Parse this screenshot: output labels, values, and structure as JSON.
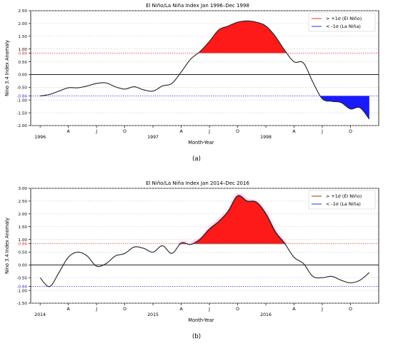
{
  "colors": {
    "el_nino": "#ff1a1a",
    "la_nina": "#1a1aff",
    "line": "#222222",
    "pos_threshold": "#e03030",
    "neg_threshold": "#3030e0",
    "zero_line": "#000000",
    "confidence_shade": "#ff9ef2",
    "dark_fill": "#a0301a"
  },
  "chart_data": [
    {
      "type": "line",
      "panel_label": "(a)",
      "title": "El Niño/La Niña Index Jan 1996–Dec 1998",
      "xlabel": "Month-Year",
      "ylabel": "Nino 3.4 Index Anomaly",
      "ylim": [
        -2.0,
        2.5
      ],
      "yticks": [
        "2.50",
        "2.00",
        "1.50",
        "1.00",
        "0.84",
        "0.50",
        "0.00",
        "-0.50",
        "-0.84",
        "-1.00",
        "-1.50",
        "-2.00"
      ],
      "x_tick_labels": [
        {
          "month": 1,
          "label": "1996"
        },
        {
          "month": 4,
          "label": "A"
        },
        {
          "month": 7,
          "label": "J"
        },
        {
          "month": 10,
          "label": "O"
        },
        {
          "month": 13,
          "label": "1997"
        },
        {
          "month": 16,
          "label": "A"
        },
        {
          "month": 19,
          "label": "J"
        },
        {
          "month": 22,
          "label": "O"
        },
        {
          "month": 25,
          "label": "1998"
        },
        {
          "month": 28,
          "label": "A"
        },
        {
          "month": 31,
          "label": "J"
        },
        {
          "month": 34,
          "label": "O"
        }
      ],
      "thresholds": {
        "upper": 0.84,
        "lower": -0.84
      },
      "legend": {
        "position": "top-right",
        "entries": [
          "> +1σ (El Niño)",
          "< -1σ (La Niña)"
        ]
      },
      "series": [
        {
          "month": [
            1,
            2,
            3,
            4,
            5,
            6,
            7,
            8,
            9,
            10,
            11,
            12,
            13,
            14,
            15,
            16,
            17,
            18,
            19,
            20,
            21,
            22,
            23,
            24,
            25,
            26,
            27,
            28,
            29,
            30,
            31,
            32,
            33,
            34,
            35,
            36
          ],
          "values": [
            -0.84,
            -0.78,
            -0.65,
            -0.52,
            -0.52,
            -0.45,
            -0.35,
            -0.33,
            -0.48,
            -0.57,
            -0.48,
            -0.6,
            -0.65,
            -0.45,
            -0.35,
            0.1,
            0.6,
            0.9,
            1.3,
            1.75,
            1.9,
            2.05,
            2.1,
            2.05,
            1.9,
            1.5,
            0.95,
            0.5,
            0.45,
            -0.3,
            -0.95,
            -1.05,
            -1.1,
            -1.35,
            -1.3,
            -1.75
          ]
        }
      ],
      "shaded_confidence": false
    },
    {
      "type": "line",
      "panel_label": "(b)",
      "title": "El Niño/La Niña Index Jan 2014–Dec 2016",
      "xlabel": "Month-Year",
      "ylabel": "Nino 3.4 Index Anomaly",
      "ylim": [
        -1.5,
        3.0
      ],
      "yticks": [
        "3.00",
        "2.50",
        "2.00",
        "1.50",
        "1.00",
        "0.84",
        "0.50",
        "0.00",
        "-0.50",
        "-0.84",
        "-1.00",
        "-1.50"
      ],
      "x_tick_labels": [
        {
          "month": 1,
          "label": "2014"
        },
        {
          "month": 4,
          "label": "A"
        },
        {
          "month": 7,
          "label": "J"
        },
        {
          "month": 10,
          "label": "O"
        },
        {
          "month": 13,
          "label": "2015"
        },
        {
          "month": 16,
          "label": "A"
        },
        {
          "month": 19,
          "label": "J"
        },
        {
          "month": 22,
          "label": "O"
        },
        {
          "month": 25,
          "label": "2016"
        },
        {
          "month": 28,
          "label": "A"
        },
        {
          "month": 31,
          "label": "J"
        },
        {
          "month": 34,
          "label": "O"
        }
      ],
      "thresholds": {
        "upper": 0.84,
        "lower": -0.84
      },
      "legend": {
        "position": "top-right",
        "entries": [
          "> +1σ (El Niño)",
          "< -1σ (La Niña)"
        ]
      },
      "series": [
        {
          "month": [
            1,
            2,
            3,
            4,
            5,
            6,
            7,
            8,
            9,
            10,
            11,
            12,
            13,
            14,
            15,
            16,
            17,
            18,
            19,
            20,
            21,
            22,
            23,
            24,
            25,
            26,
            27,
            28,
            29,
            30,
            31,
            32,
            33,
            34,
            35,
            36
          ],
          "values": [
            -0.5,
            -0.85,
            -0.3,
            0.3,
            0.5,
            0.35,
            -0.05,
            0.05,
            0.35,
            0.45,
            0.7,
            0.65,
            0.5,
            0.75,
            0.45,
            0.85,
            0.8,
            1.0,
            1.4,
            1.7,
            2.1,
            2.7,
            2.5,
            2.45,
            2.0,
            1.3,
            0.84,
            0.3,
            0.05,
            -0.45,
            -0.5,
            -0.45,
            -0.6,
            -0.7,
            -0.6,
            -0.3
          ]
        }
      ],
      "shaded_confidence": true
    }
  ]
}
